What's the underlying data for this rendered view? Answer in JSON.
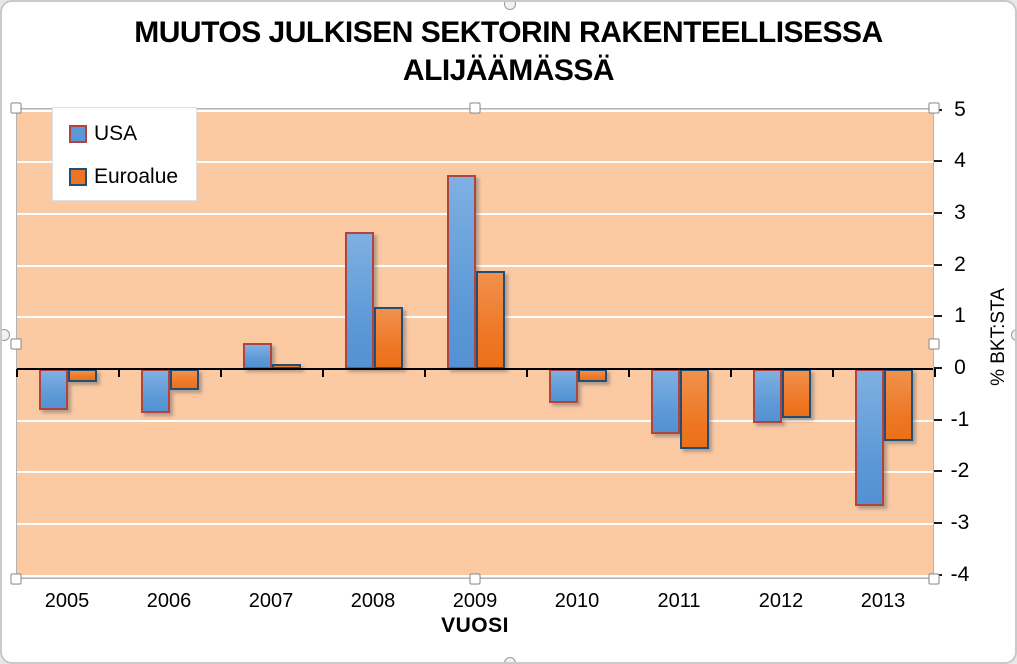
{
  "chart_data": {
    "type": "bar",
    "title": "MUUTOS JULKISEN SEKTORIN RAKENTEELLISESSA ALIJÄÄMÄSSÄ",
    "title_lines": [
      "MUUTOS JULKISEN SEKTORIN RAKENTEELLISESSA",
      "ALIJÄÄMÄSSÄ"
    ],
    "categories": [
      "2005",
      "2006",
      "2007",
      "2008",
      "2009",
      "2010",
      "2011",
      "2012",
      "2013"
    ],
    "series": [
      {
        "name": "USA",
        "color": "#5b98d6",
        "border_color": "#b1443e",
        "values": [
          -0.8,
          -0.85,
          0.5,
          2.65,
          3.75,
          -0.65,
          -1.25,
          -1.05,
          -2.65
        ]
      },
      {
        "name": "Euroalue",
        "color": "#ed7420",
        "border_color": "#1f4e79",
        "values": [
          -0.25,
          -0.4,
          0.1,
          1.2,
          1.9,
          -0.25,
          -1.55,
          -0.95,
          -1.4
        ]
      }
    ],
    "xlabel": "VUOSI",
    "ylabel": "% BKT:STA",
    "ylim": [
      -4,
      5
    ],
    "ytick_step": 1,
    "yticks": [
      5,
      4,
      3,
      2,
      1,
      0,
      -1,
      -2,
      -3,
      -4
    ],
    "grid": true,
    "gridline_color": "#ffffff",
    "legend_position": "top-left",
    "plot_bg": "#fbc9a2",
    "chart_bg": "#ffffff",
    "axis_color": "#000000"
  },
  "selection": {
    "state": "plot-area-selected"
  }
}
